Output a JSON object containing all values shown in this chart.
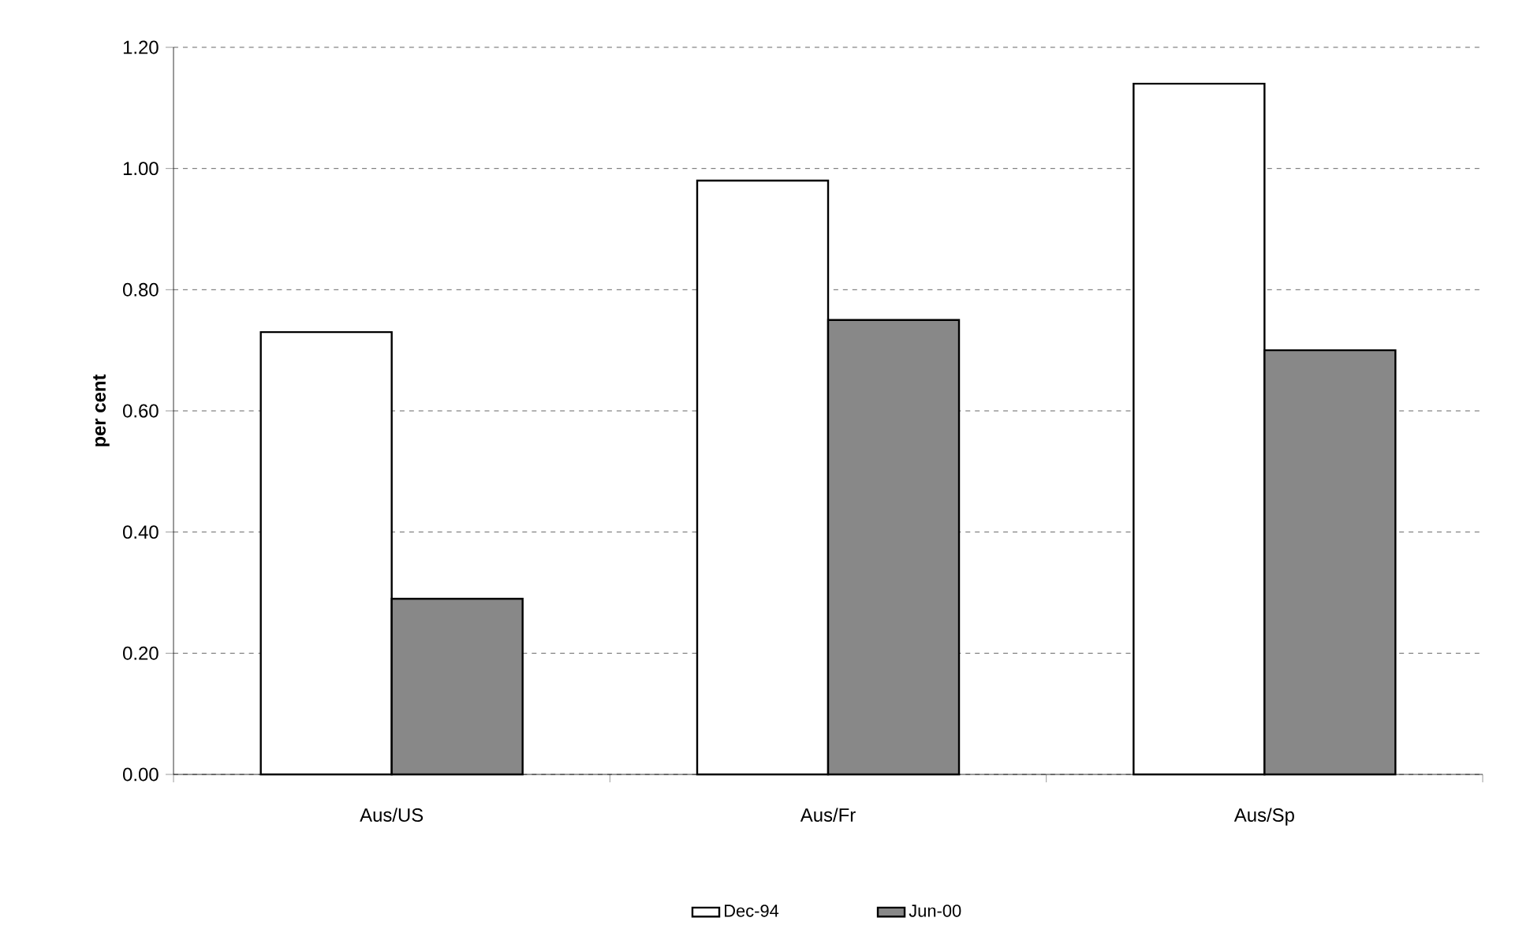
{
  "chart_data": {
    "type": "bar",
    "ylabel": "per cent",
    "categories": [
      "Aus/US",
      "Aus/Fr",
      "Aus/Sp"
    ],
    "series": [
      {
        "name": "Dec-94",
        "color": "#ffffff",
        "values": [
          0.73,
          0.98,
          1.14
        ]
      },
      {
        "name": "Jun-00",
        "color": "#888888",
        "values": [
          0.29,
          0.75,
          0.7
        ]
      }
    ],
    "ylim": [
      0,
      1.2
    ],
    "yticks": [
      {
        "value": 0,
        "label": "0.00"
      },
      {
        "value": 0.2,
        "label": "0.20"
      },
      {
        "value": 0.4,
        "label": "0.40"
      },
      {
        "value": 0.6,
        "label": "0.60"
      },
      {
        "value": 0.8,
        "label": "0.80"
      },
      {
        "value": 1.0,
        "label": "1.00"
      },
      {
        "value": 1.2,
        "label": "1.20"
      }
    ],
    "grid": "y",
    "legend": "bottom"
  }
}
